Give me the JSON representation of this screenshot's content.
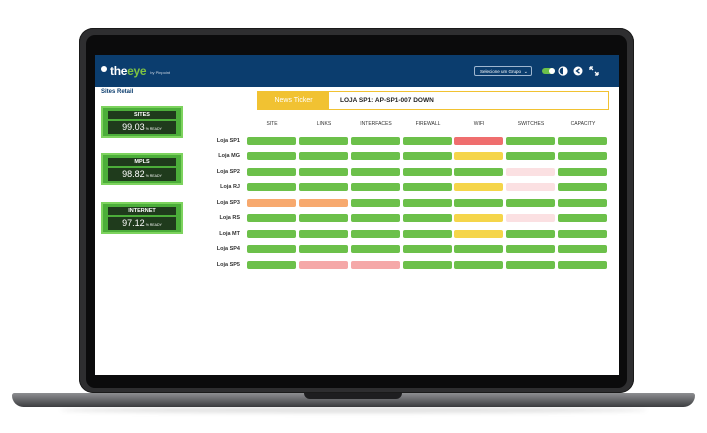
{
  "app": {
    "logo_text_the": "the",
    "logo_text_eye": "eye",
    "logo_by": "by Pinpoint"
  },
  "header": {
    "group_select_value": "Selecione um Grupo",
    "icons": [
      "toggle-switch-icon",
      "contrast-icon",
      "back-icon",
      "expand-icon"
    ]
  },
  "sidebar": {
    "title": "Sites Retail",
    "kpis": [
      {
        "title": "SITES",
        "value": "99.03",
        "unit": "% READY"
      },
      {
        "title": "MPLS",
        "value": "98.82",
        "unit": "% READY"
      },
      {
        "title": "INTERNET",
        "value": "97.12",
        "unit": "% READY"
      }
    ]
  },
  "ticker": {
    "label": "News Ticker",
    "text": "LOJA SP1: AP-SP1-007 DOWN"
  },
  "grid": {
    "columns": [
      "SITE",
      "LINKS",
      "INTERFACES",
      "FIREWALL",
      "WIFI",
      "SWITCHES",
      "CAPACITY"
    ],
    "rows": [
      "Loja SP1",
      "Loja MG",
      "Loja SP2",
      "Loja RJ",
      "Loja SP3",
      "Loja RS",
      "Loja MT",
      "Loja SP4",
      "Loja SP5"
    ],
    "status": [
      [
        "green",
        "green",
        "green",
        "green",
        "red",
        "green",
        "green"
      ],
      [
        "green",
        "green",
        "green",
        "green",
        "yellow",
        "green",
        "green"
      ],
      [
        "green",
        "green",
        "green",
        "green",
        "green",
        "pink",
        "green"
      ],
      [
        "green",
        "green",
        "green",
        "green",
        "yellow",
        "pink",
        "green"
      ],
      [
        "orange",
        "orange",
        "green",
        "green",
        "green",
        "green",
        "green"
      ],
      [
        "green",
        "green",
        "green",
        "green",
        "yellow",
        "pink",
        "green"
      ],
      [
        "green",
        "green",
        "green",
        "green",
        "yellow",
        "green",
        "green"
      ],
      [
        "green",
        "green",
        "green",
        "green",
        "green",
        "green",
        "green"
      ],
      [
        "green",
        "light-red",
        "light-red",
        "green",
        "green",
        "green",
        "green"
      ]
    ]
  },
  "colors": {
    "header_bg": "#0b3d6e",
    "green": "#6cc04a",
    "yellow": "#f5d54a",
    "red": "#ef6e6e",
    "orange": "#f7a96e",
    "pink": "#fbe0e2",
    "light_red": "#f5a8a8",
    "ticker": "#f1c232"
  }
}
